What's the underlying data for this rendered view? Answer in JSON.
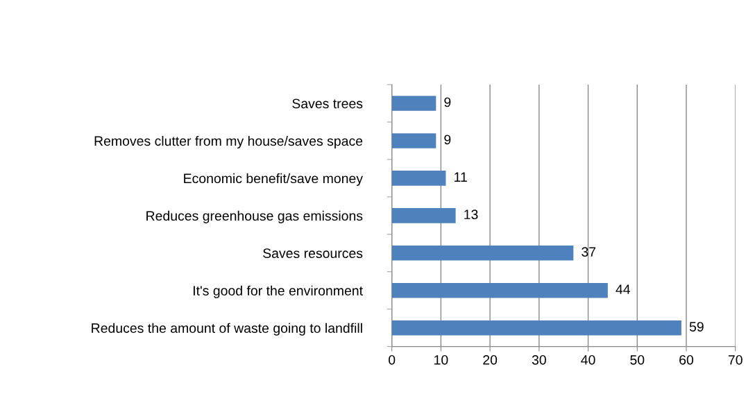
{
  "chart_data": {
    "type": "bar",
    "orientation": "horizontal",
    "categories": [
      "Saves trees",
      "Removes clutter from my house/saves space",
      "Economic benefit/save money",
      "Reduces greenhouse gas emissions",
      "Saves resources",
      "It's good for the environment",
      "Reduces the amount of waste going to landfill"
    ],
    "values": [
      9,
      9,
      11,
      13,
      37,
      44,
      59
    ],
    "color": "#4f81bd",
    "xlim": [
      0,
      70
    ],
    "xticks": [
      0,
      10,
      20,
      30,
      40,
      50,
      60,
      70
    ],
    "grid": "x",
    "data_labels": true
  }
}
